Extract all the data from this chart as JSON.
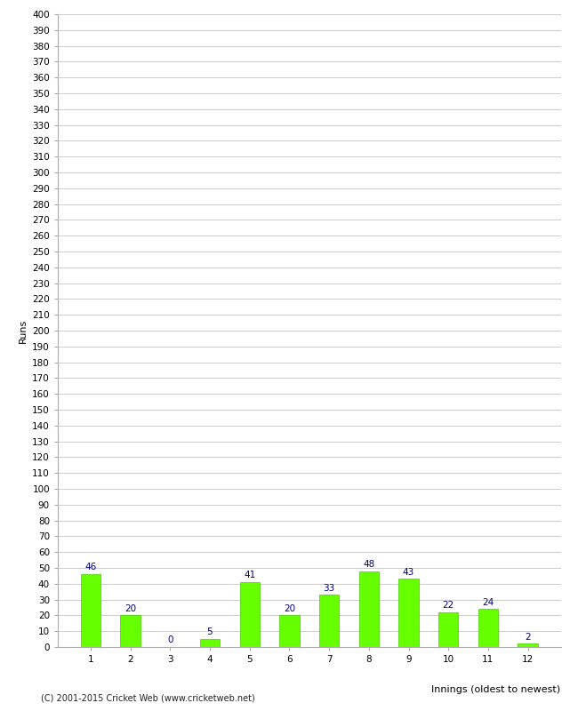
{
  "xlabel": "Innings (oldest to newest)",
  "ylabel": "Runs",
  "categories": [
    1,
    2,
    3,
    4,
    5,
    6,
    7,
    8,
    9,
    10,
    11,
    12
  ],
  "values": [
    46,
    20,
    0,
    5,
    41,
    20,
    33,
    48,
    43,
    22,
    24,
    2
  ],
  "bar_color": "#66ff00",
  "bar_edge_color": "#44cc00",
  "label_color": "#000080",
  "label_fontsize": 7.5,
  "ytick_min": 0,
  "ytick_max": 400,
  "ytick_step": 10,
  "grid_color": "#cccccc",
  "background_color": "#ffffff",
  "footer_text": "(C) 2001-2015 Cricket Web (www.cricketweb.net)",
  "ylabel_fontsize": 8,
  "xlabel_fontsize": 8,
  "tick_fontsize": 7.5,
  "bar_width": 0.5
}
